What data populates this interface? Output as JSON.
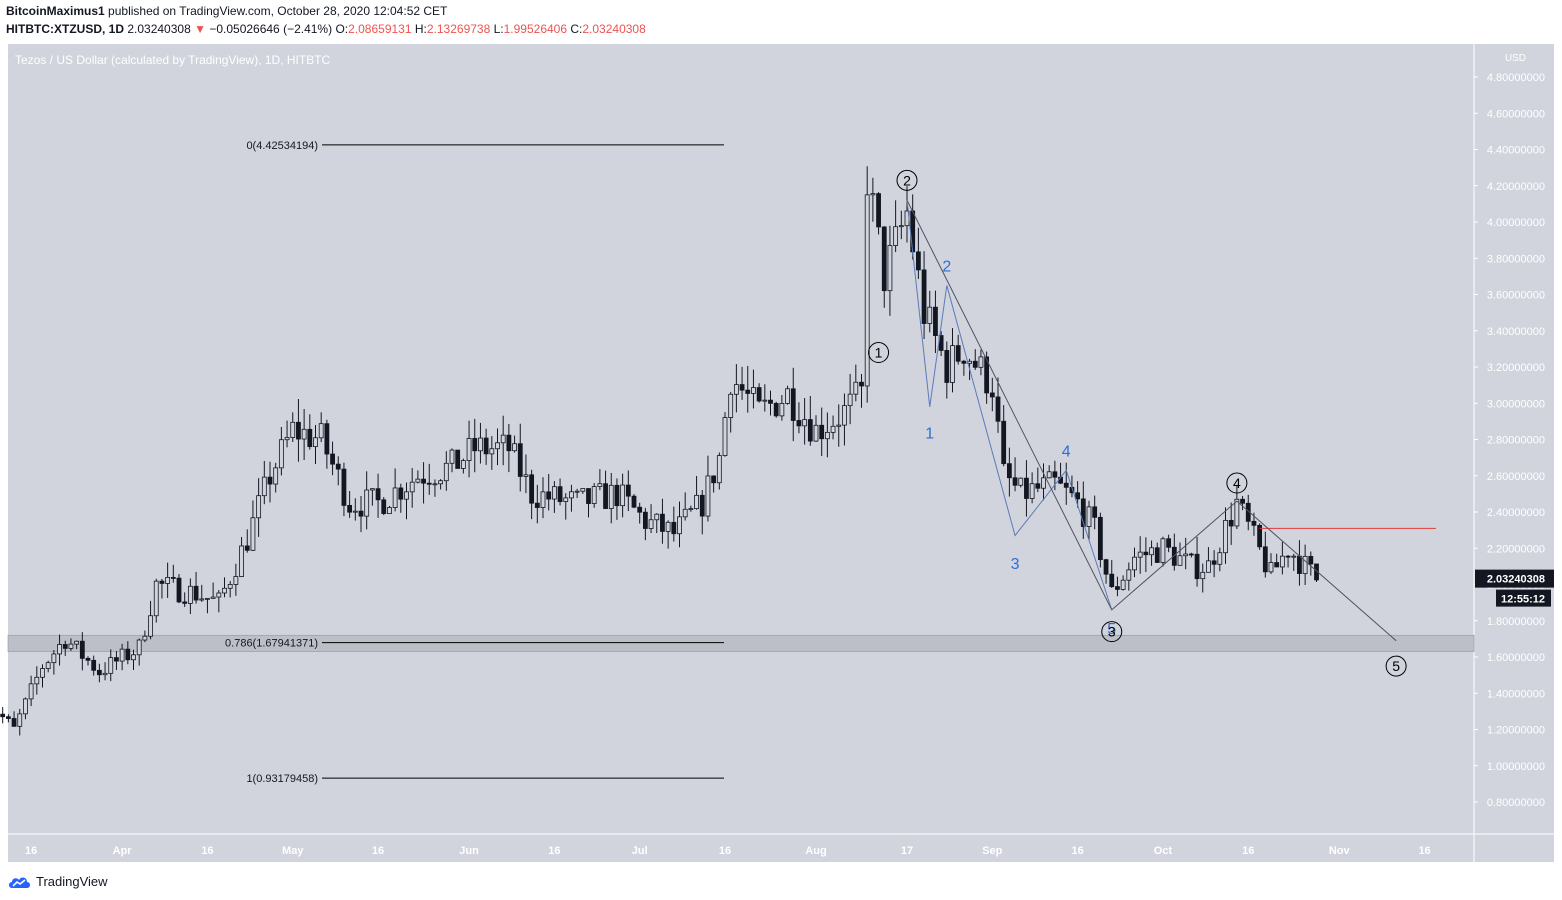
{
  "header": {
    "author": "BitcoinMaximus1",
    "published_text": "published on TradingView.com, October 28, 2020 12:04:52 CET",
    "symbol": "HITBTC:XTZUSD, 1D",
    "last_price": "2.03240308",
    "change_arrow": "▼",
    "change": "−0.05026646 (−2.41%)",
    "o_label": "O:",
    "o_value": "2.08659131",
    "h_label": "H:",
    "h_value": "2.13269738",
    "l_label": "L:",
    "l_value": "1.99526406",
    "c_label": "C:",
    "c_value": "2.03240308"
  },
  "footer": {
    "brand": "TradingView"
  },
  "colors": {
    "plot_bg": "#d1d4dc",
    "candle": "#131722",
    "fib_zone": "#bcbfc7",
    "resistance_line": "#e53935",
    "wave_label_blue": "#2e6ed6",
    "price_tag_bg": "#131722"
  },
  "chart_data": {
    "type": "candlestick",
    "title": "Tezos / US Dollar (calculated by TradingView), 1D, HITBTC",
    "currency_label": "USD",
    "ylim": [
      0.6,
      4.9
    ],
    "y_ticks": [
      "4.80000000",
      "4.60000000",
      "4.40000000",
      "4.20000000",
      "4.00000000",
      "3.80000000",
      "3.60000000",
      "3.40000000",
      "3.20000000",
      "3.00000000",
      "2.80000000",
      "2.60000000",
      "2.40000000",
      "2.20000000",
      "2.00000000",
      "1.80000000",
      "1.60000000",
      "1.40000000",
      "1.20000000",
      "1.00000000",
      "0.80000000"
    ],
    "x_ticks": [
      {
        "label": "16",
        "date": "2020-03-16"
      },
      {
        "label": "Apr",
        "date": "2020-04-01"
      },
      {
        "label": "16",
        "date": "2020-04-16"
      },
      {
        "label": "May",
        "date": "2020-05-01"
      },
      {
        "label": "16",
        "date": "2020-05-16"
      },
      {
        "label": "Jun",
        "date": "2020-06-01"
      },
      {
        "label": "16",
        "date": "2020-06-16"
      },
      {
        "label": "Jul",
        "date": "2020-07-01"
      },
      {
        "label": "16",
        "date": "2020-07-16"
      },
      {
        "label": "Aug",
        "date": "2020-08-01"
      },
      {
        "label": "17",
        "date": "2020-08-17"
      },
      {
        "label": "Sep",
        "date": "2020-09-01"
      },
      {
        "label": "16",
        "date": "2020-09-16"
      },
      {
        "label": "Oct",
        "date": "2020-10-01"
      },
      {
        "label": "16",
        "date": "2020-10-16"
      },
      {
        "label": "Nov",
        "date": "2020-11-01"
      },
      {
        "label": "16",
        "date": "2020-11-16"
      }
    ],
    "date_range": [
      "2020-03-08",
      "2020-11-28"
    ],
    "close_anchors": [
      {
        "date": "2020-03-08",
        "price": 2.45
      },
      {
        "date": "2020-03-10",
        "price": 1.3
      },
      {
        "date": "2020-03-13",
        "price": 1.2
      },
      {
        "date": "2020-03-18",
        "price": 1.55
      },
      {
        "date": "2020-03-22",
        "price": 1.7
      },
      {
        "date": "2020-03-28",
        "price": 1.52
      },
      {
        "date": "2020-04-04",
        "price": 1.65
      },
      {
        "date": "2020-04-07",
        "price": 2.0
      },
      {
        "date": "2020-04-14",
        "price": 1.95
      },
      {
        "date": "2020-04-18",
        "price": 1.9
      },
      {
        "date": "2020-04-23",
        "price": 2.25
      },
      {
        "date": "2020-04-27",
        "price": 2.6
      },
      {
        "date": "2020-05-01",
        "price": 2.85
      },
      {
        "date": "2020-05-06",
        "price": 2.8
      },
      {
        "date": "2020-05-11",
        "price": 2.45
      },
      {
        "date": "2020-05-16",
        "price": 2.45
      },
      {
        "date": "2020-05-23",
        "price": 2.6
      },
      {
        "date": "2020-05-29",
        "price": 2.65
      },
      {
        "date": "2020-06-02",
        "price": 2.75
      },
      {
        "date": "2020-06-08",
        "price": 2.75
      },
      {
        "date": "2020-06-12",
        "price": 2.5
      },
      {
        "date": "2020-06-20",
        "price": 2.45
      },
      {
        "date": "2020-06-27",
        "price": 2.5
      },
      {
        "date": "2020-07-02",
        "price": 2.35
      },
      {
        "date": "2020-07-07",
        "price": 2.28
      },
      {
        "date": "2020-07-12",
        "price": 2.45
      },
      {
        "date": "2020-07-15",
        "price": 2.7
      },
      {
        "date": "2020-07-17",
        "price": 3.15
      },
      {
        "date": "2020-07-22",
        "price": 2.95
      },
      {
        "date": "2020-07-27",
        "price": 3.05
      },
      {
        "date": "2020-08-01",
        "price": 2.85
      },
      {
        "date": "2020-08-06",
        "price": 2.95
      },
      {
        "date": "2020-08-09",
        "price": 3.05
      },
      {
        "date": "2020-08-10",
        "price": 4.25
      },
      {
        "date": "2020-08-13",
        "price": 3.7
      },
      {
        "date": "2020-08-17",
        "price": 4.05
      },
      {
        "date": "2020-08-20",
        "price": 3.5
      },
      {
        "date": "2020-08-24",
        "price": 3.2
      },
      {
        "date": "2020-08-27",
        "price": 3.3
      },
      {
        "date": "2020-09-01",
        "price": 3.1
      },
      {
        "date": "2020-09-03",
        "price": 2.6
      },
      {
        "date": "2020-09-06",
        "price": 2.5
      },
      {
        "date": "2020-09-12",
        "price": 2.55
      },
      {
        "date": "2020-09-16",
        "price": 2.45
      },
      {
        "date": "2020-09-19",
        "price": 2.3
      },
      {
        "date": "2020-09-22",
        "price": 1.95
      },
      {
        "date": "2020-09-26",
        "price": 2.15
      },
      {
        "date": "2020-10-01",
        "price": 2.2
      },
      {
        "date": "2020-10-06",
        "price": 2.1
      },
      {
        "date": "2020-10-09",
        "price": 2.1
      },
      {
        "date": "2020-10-14",
        "price": 2.45
      },
      {
        "date": "2020-10-17",
        "price": 2.25
      },
      {
        "date": "2020-10-20",
        "price": 2.05
      },
      {
        "date": "2020-10-23",
        "price": 2.2
      },
      {
        "date": "2020-10-28",
        "price": 2.03
      }
    ],
    "fibonacci": [
      {
        "label": "0(4.42534194)",
        "ratio": 0,
        "price": 4.42534194
      },
      {
        "label": "0.786(1.67941371)",
        "ratio": 0.786,
        "price": 1.67941371
      },
      {
        "label": "1(0.93179458)",
        "ratio": 1,
        "price": 0.93179458
      }
    ],
    "fib_zone": {
      "high": 1.72,
      "low": 1.63
    },
    "resistance": {
      "price": 2.31,
      "from": "2020-10-18",
      "to": "2020-11-18"
    },
    "elliott_main": [
      {
        "label": "1",
        "date": "2020-08-12",
        "price": 3.4
      },
      {
        "label": "2",
        "date": "2020-08-17",
        "price": 4.12
      },
      {
        "label": "3",
        "date": "2020-09-22",
        "price": 1.86
      },
      {
        "label": "4",
        "date": "2020-10-14",
        "price": 2.46
      },
      {
        "label": "5",
        "date": "2020-11-11",
        "price": 1.69
      }
    ],
    "elliott_main_label_pos": [
      {
        "label": "1",
        "date": "2020-08-12",
        "price": 3.28
      },
      {
        "label": "2",
        "date": "2020-08-17",
        "price": 4.23
      },
      {
        "label": "3",
        "date": "2020-09-22",
        "price": 1.74
      },
      {
        "label": "4",
        "date": "2020-10-14",
        "price": 2.56
      },
      {
        "label": "5",
        "date": "2020-11-11",
        "price": 1.55
      }
    ],
    "elliott_sub": [
      {
        "label": "",
        "date": "2020-08-17",
        "price": 4.12
      },
      {
        "label": "1",
        "date": "2020-08-21",
        "price": 2.98
      },
      {
        "label": "2",
        "date": "2020-08-24",
        "price": 3.65
      },
      {
        "label": "3",
        "date": "2020-09-05",
        "price": 2.27
      },
      {
        "label": "4",
        "date": "2020-09-14",
        "price": 2.63
      },
      {
        "label": "5",
        "date": "2020-09-22",
        "price": 1.86
      }
    ],
    "elliott_sub_label_pos": [
      {
        "label": "1",
        "date": "2020-08-21",
        "price": 2.84
      },
      {
        "label": "2",
        "date": "2020-08-24",
        "price": 3.76
      },
      {
        "label": "3",
        "date": "2020-09-05",
        "price": 2.12
      },
      {
        "label": "4",
        "date": "2020-09-14",
        "price": 2.74
      },
      {
        "label": "5",
        "date": "2020-09-22",
        "price": 1.76
      }
    ],
    "current_price_label": "2.03240308",
    "countdown_label": "12:55:12"
  }
}
